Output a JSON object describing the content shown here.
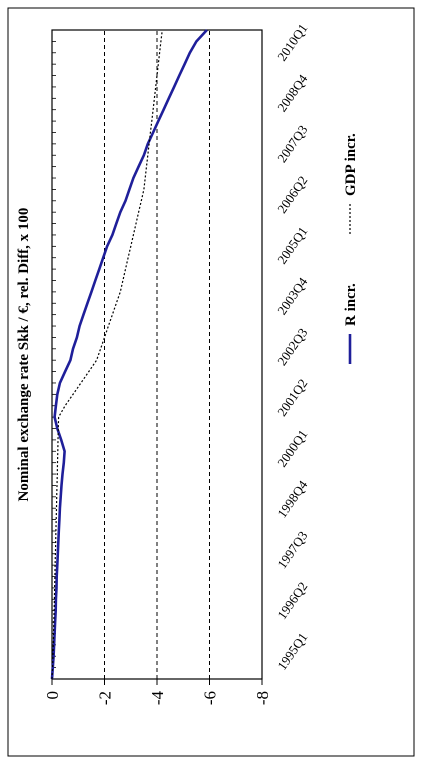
{
  "chart_data": {
    "type": "line",
    "title": "Nominal exchange rate Skk / €, rel. Diff, x 100",
    "xlabel": "",
    "ylabel": "",
    "ylim": [
      -8,
      0
    ],
    "yticks": [
      0,
      -2,
      -4,
      -6,
      -8
    ],
    "ytick_labels": [
      "0",
      "-2",
      "-4",
      "-6",
      "-8"
    ],
    "x_tick_labels": [
      "1995Q1",
      "1996Q2",
      "1997Q3",
      "1998Q4",
      "2000Q1",
      "2001Q2",
      "2002Q3",
      "2003Q4",
      "2005Q1",
      "2006Q2",
      "2007Q3",
      "2008Q4",
      "2010Q1"
    ],
    "grid": "horizontal dashed at -2, -4, -6",
    "legend_position": "bottom",
    "series": [
      {
        "name": "R incr.",
        "color": "#1f1f9a",
        "style": "solid",
        "values": [
          0,
          -0.03,
          -0.06,
          -0.08,
          -0.1,
          -0.12,
          -0.14,
          -0.15,
          -0.17,
          -0.18,
          -0.2,
          -0.22,
          -0.24,
          -0.26,
          -0.28,
          -0.3,
          -0.33,
          -0.36,
          -0.4,
          -0.45,
          -0.48,
          -0.35,
          -0.2,
          -0.1,
          -0.15,
          -0.2,
          -0.3,
          -0.5,
          -0.7,
          -0.8,
          -0.95,
          -1.05,
          -1.2,
          -1.35,
          -1.5,
          -1.65,
          -1.8,
          -1.95,
          -2.1,
          -2.3,
          -2.45,
          -2.6,
          -2.8,
          -2.95,
          -3.1,
          -3.3,
          -3.5,
          -3.65,
          -3.85,
          -4.05,
          -4.25,
          -4.45,
          -4.65,
          -4.85,
          -5.05,
          -5.25,
          -5.5,
          -5.9
        ]
      },
      {
        "name": "GDP incr.",
        "color": "#000000",
        "style": "dotted",
        "values": [
          0,
          -0.02,
          -0.04,
          -0.05,
          -0.06,
          -0.07,
          -0.08,
          -0.09,
          -0.1,
          -0.11,
          -0.12,
          -0.13,
          -0.14,
          -0.15,
          -0.16,
          -0.17,
          -0.18,
          -0.19,
          -0.2,
          -0.21,
          -0.22,
          -0.23,
          -0.24,
          -0.25,
          -0.5,
          -0.8,
          -1.1,
          -1.4,
          -1.7,
          -1.85,
          -2.0,
          -2.15,
          -2.3,
          -2.45,
          -2.6,
          -2.7,
          -2.8,
          -2.9,
          -3.0,
          -3.1,
          -3.2,
          -3.3,
          -3.4,
          -3.5,
          -3.55,
          -3.6,
          -3.65,
          -3.7,
          -3.75,
          -3.8,
          -3.85,
          -3.9,
          -3.95,
          -4.0,
          -4.05,
          -4.1,
          -4.15,
          -4.2
        ]
      }
    ]
  }
}
